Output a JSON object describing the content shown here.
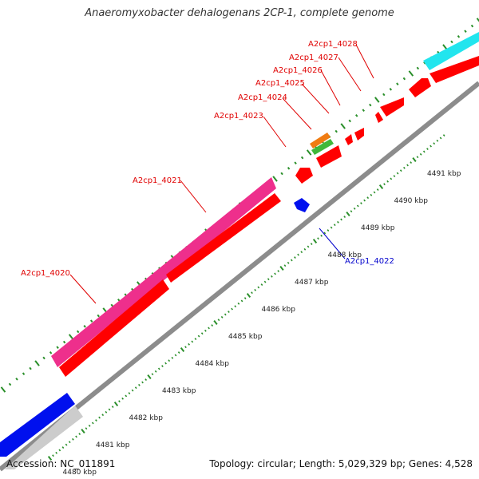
{
  "title": "Anaeromyxobacter dehalogenans 2CP-1, complete genome",
  "accession": "Accession: NC_011891",
  "summary": "Topology: circular; Length: 5,029,329 bp; Genes: 4,528",
  "colors": {
    "backbone": "#999999",
    "gene_red": "#ff0000",
    "gene_magenta": "#ee2f8c",
    "gene_cyan": "#22e5ee",
    "gene_blue": "#0010ee",
    "gene_gray": "#cccccc",
    "gene_orange": "#f07c12",
    "gene_green": "#40b83a",
    "tick_green": "#2a8f2a",
    "label_red": "#e00000",
    "label_blue": "#0000cc"
  },
  "ticks": [
    "4480 kbp",
    "4481 kbp",
    "4482 kbp",
    "4483 kbp",
    "4484 kbp",
    "4485 kbp",
    "4486 kbp",
    "4487 kbp",
    "4488 kbp",
    "4489 kbp",
    "4490 kbp",
    "4491 kbp"
  ],
  "genes": [
    {
      "label": "A2cp1_4020",
      "color": "gene_magenta"
    },
    {
      "label": "A2cp1_4020",
      "color": "gene_red"
    },
    {
      "label": "A2cp1_4021",
      "color": "gene_red"
    },
    {
      "label": "A2cp1_4022",
      "color": "gene_blue"
    },
    {
      "label": "A2cp1_4023",
      "color": "gene_red"
    },
    {
      "label": "A2cp1_4024",
      "color": "gene_orange"
    },
    {
      "label": "A2cp1_4024",
      "color": "gene_green"
    },
    {
      "label": "A2cp1_4025",
      "color": "gene_red"
    },
    {
      "label": "A2cp1_4026",
      "color": "gene_red"
    },
    {
      "label": "A2cp1_4027",
      "color": "gene_red"
    },
    {
      "label": "A2cp1_4028",
      "color": "gene_red"
    }
  ],
  "labels": [
    "A2cp1_4020",
    "A2cp1_4021",
    "A2cp1_4022",
    "A2cp1_4023",
    "A2cp1_4024",
    "A2cp1_4025",
    "A2cp1_4026",
    "A2cp1_4027",
    "A2cp1_4028"
  ]
}
